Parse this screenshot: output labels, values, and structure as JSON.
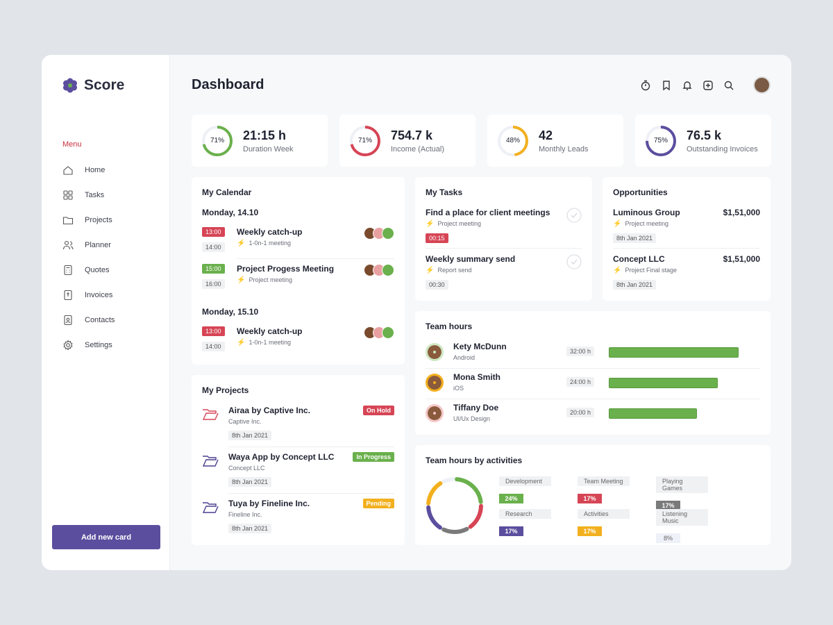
{
  "app": {
    "name": "Score"
  },
  "sidebar": {
    "menu_label": "Menu",
    "items": [
      {
        "label": "Home",
        "icon": "home-icon"
      },
      {
        "label": "Tasks",
        "icon": "grid-icon"
      },
      {
        "label": "Projects",
        "icon": "folder-icon"
      },
      {
        "label": "Planner",
        "icon": "users-icon"
      },
      {
        "label": "Quotes",
        "icon": "calculator-icon"
      },
      {
        "label": "Invoices",
        "icon": "invoice-icon"
      },
      {
        "label": "Contacts",
        "icon": "contacts-icon"
      },
      {
        "label": "Settings",
        "icon": "gear-icon"
      }
    ],
    "add_button": "Add new card"
  },
  "header": {
    "title": "Dashboard",
    "icons": [
      "timer-icon",
      "bookmark-icon",
      "bell-icon",
      "plus-square-icon",
      "search-icon"
    ]
  },
  "stats": [
    {
      "value": "21:15 h",
      "label": "Duration Week",
      "percent": 71,
      "pct_label": "71%",
      "color": "#6ab04c"
    },
    {
      "value": "754.7 k",
      "label": "Income (Actual)",
      "percent": 71,
      "pct_label": "71%",
      "color": "#d64555"
    },
    {
      "value": "42",
      "label": "Monthly Leads",
      "percent": 48,
      "pct_label": "48%",
      "color": "#f2b01e"
    },
    {
      "value": "76.5 k",
      "label": "Outstanding Invoices",
      "percent": 75,
      "pct_label": "75%",
      "color": "#5b4e9e"
    }
  ],
  "calendar": {
    "title": "My Calendar",
    "days": [
      {
        "date": "Monday, 14.10",
        "events": [
          {
            "start": "13:00",
            "end": "14:00",
            "title": "Weekly catch-up",
            "sub": "1-0n-1 meeting",
            "color": "#d64555"
          },
          {
            "start": "15:00",
            "end": "16:00",
            "title": "Project Progess Meeting",
            "sub": "Project meeting",
            "color": "#6ab04c"
          }
        ]
      },
      {
        "date": "Monday, 15.10",
        "events": [
          {
            "start": "13:00",
            "end": "14:00",
            "title": "Weekly catch-up",
            "sub": "1-0n-1 meeting",
            "color": "#d64555"
          }
        ]
      }
    ]
  },
  "tasks": {
    "title": "My Tasks",
    "items": [
      {
        "title": "Find a place for client meetings",
        "sub": "Project meeting",
        "time": "00:15",
        "urgent": true
      },
      {
        "title": "Weekly summary send",
        "sub": "Report send",
        "time": "00:30",
        "urgent": false
      }
    ]
  },
  "opportunities": {
    "title": "Opportunities",
    "items": [
      {
        "name": "Luminous Group",
        "amount": "$1,51,000",
        "sub": "Project meeting",
        "date": "8th Jan 2021"
      },
      {
        "name": "Concept LLC",
        "amount": "$1,51,000",
        "sub": "Project Final stage",
        "date": "8th Jan 2021"
      }
    ]
  },
  "projects": {
    "title": "My Projects",
    "items": [
      {
        "name": "Airaa by Captive Inc.",
        "company": "Captive Inc.",
        "date": "8th Jan 2021",
        "status": "On Hold",
        "color": "#d64555"
      },
      {
        "name": "Waya App by Concept LLC",
        "company": "Concept LLC",
        "date": "8th Jan 2021",
        "status": "In Progress",
        "color": "#6ab04c"
      },
      {
        "name": "Tuya by Fineline Inc.",
        "company": "Fineline Inc.",
        "date": "8th Jan 2021",
        "status": "Pending",
        "color": "#f2b01e"
      }
    ]
  },
  "team_hours": {
    "title": "Team hours",
    "members": [
      {
        "name": "Kety McDunn",
        "role": "Android",
        "hours": "32:00 h",
        "fraction": 0.87
      },
      {
        "name": "Mona Smith",
        "role": "iOS",
        "hours": "24:00 h",
        "fraction": 0.73
      },
      {
        "name": "Tiffany Doe",
        "role": "UI/Ux Design",
        "hours": "20:00 h",
        "fraction": 0.59
      }
    ]
  },
  "activities": {
    "title": "Team hours by activities",
    "items": [
      {
        "name": "Development",
        "pct": "24%",
        "value": 24,
        "color": "#6ab04c"
      },
      {
        "name": "Team Meeting",
        "pct": "17%",
        "value": 17,
        "color": "#d64555"
      },
      {
        "name": "Playing Games",
        "pct": "17%",
        "value": 17,
        "color": "#7a7a7a"
      },
      {
        "name": "Research",
        "pct": "17%",
        "value": 17,
        "color": "#5b4e9e"
      },
      {
        "name": "Activities",
        "pct": "17%",
        "value": 17,
        "color": "#f2b01e"
      },
      {
        "name": "Listening Music",
        "pct": "8%",
        "value": 8,
        "color": "#eef1f8"
      }
    ]
  }
}
